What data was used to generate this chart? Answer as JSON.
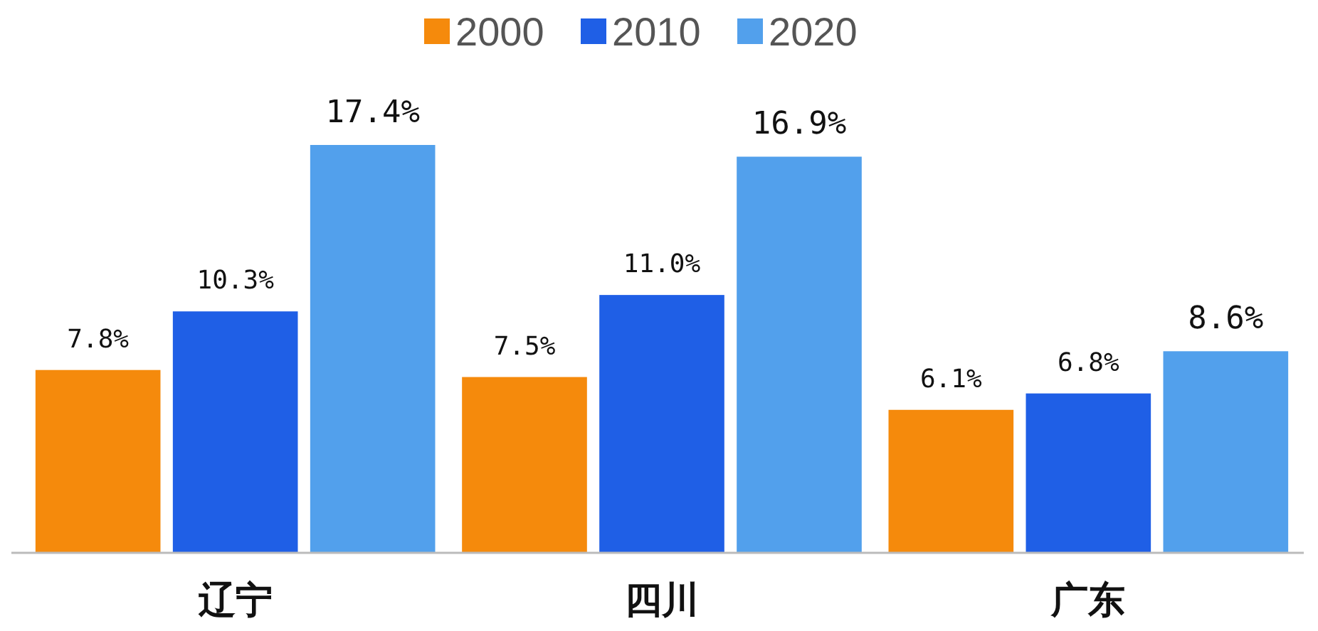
{
  "chart_data": {
    "type": "bar",
    "categories": [
      "辽宁",
      "四川",
      "广东"
    ],
    "legend": "top",
    "series": [
      {
        "name": "2000",
        "color": "#f58a0c",
        "values": [
          7.8,
          7.5,
          6.1
        ],
        "value_labels": [
          "7.8%",
          "7.5%",
          "6.1%"
        ]
      },
      {
        "name": "2010",
        "color": "#1f5fe6",
        "values": [
          10.3,
          11.0,
          6.8
        ],
        "value_labels": [
          "10.3%",
          "11.0%",
          "6.8%"
        ]
      },
      {
        "name": "2020",
        "color": "#52a0ec",
        "values": [
          17.4,
          16.9,
          8.6
        ],
        "value_labels": [
          "17.4%",
          "16.9%",
          "8.6%"
        ]
      }
    ]
  }
}
